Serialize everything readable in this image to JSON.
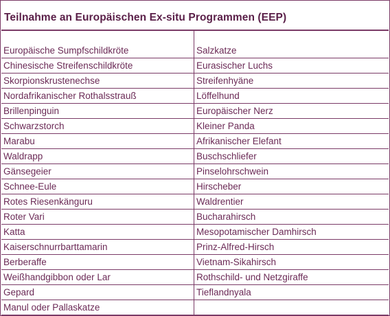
{
  "title": "Teilnahme an Europäischen Ex-situ Programmen (EEP)",
  "rows": [
    [
      "Europäische Sumpfschildkröte",
      "Salzkatze"
    ],
    [
      "Chinesische Streifenschildkröte",
      "Eurasischer Luchs"
    ],
    [
      "Skorpionskrustenechse",
      "Streifenhyäne"
    ],
    [
      "Nordafrikanischer Rothalsstrauß",
      "Löffelhund"
    ],
    [
      "Brillenpinguin",
      "Europäischer Nerz"
    ],
    [
      "Schwarzstorch",
      "Kleiner Panda"
    ],
    [
      "Marabu",
      "Afrikanischer Elefant"
    ],
    [
      "Waldrapp",
      "Buschschliefer"
    ],
    [
      "Gänsegeier",
      "Pinselohrschwein"
    ],
    [
      "Schnee-Eule",
      "Hirscheber"
    ],
    [
      "Rotes Riesenkänguru",
      "Waldrentier"
    ],
    [
      "Roter Vari",
      "Bucharahirsch"
    ],
    [
      "Katta",
      "Mesopotamischer Damhirsch"
    ],
    [
      "Kaiserschnurrbarttamarin",
      "Prinz-Alfred-Hirsch"
    ],
    [
      "Berberaffe",
      "Vietnam-Sikahirsch"
    ],
    [
      "Weißhandgibbon oder Lar",
      "Rothschild- und Netzgiraffe"
    ],
    [
      "Gepard",
      "Tieflandnyala"
    ],
    [
      "Manul oder Pallaskatze",
      ""
    ]
  ]
}
